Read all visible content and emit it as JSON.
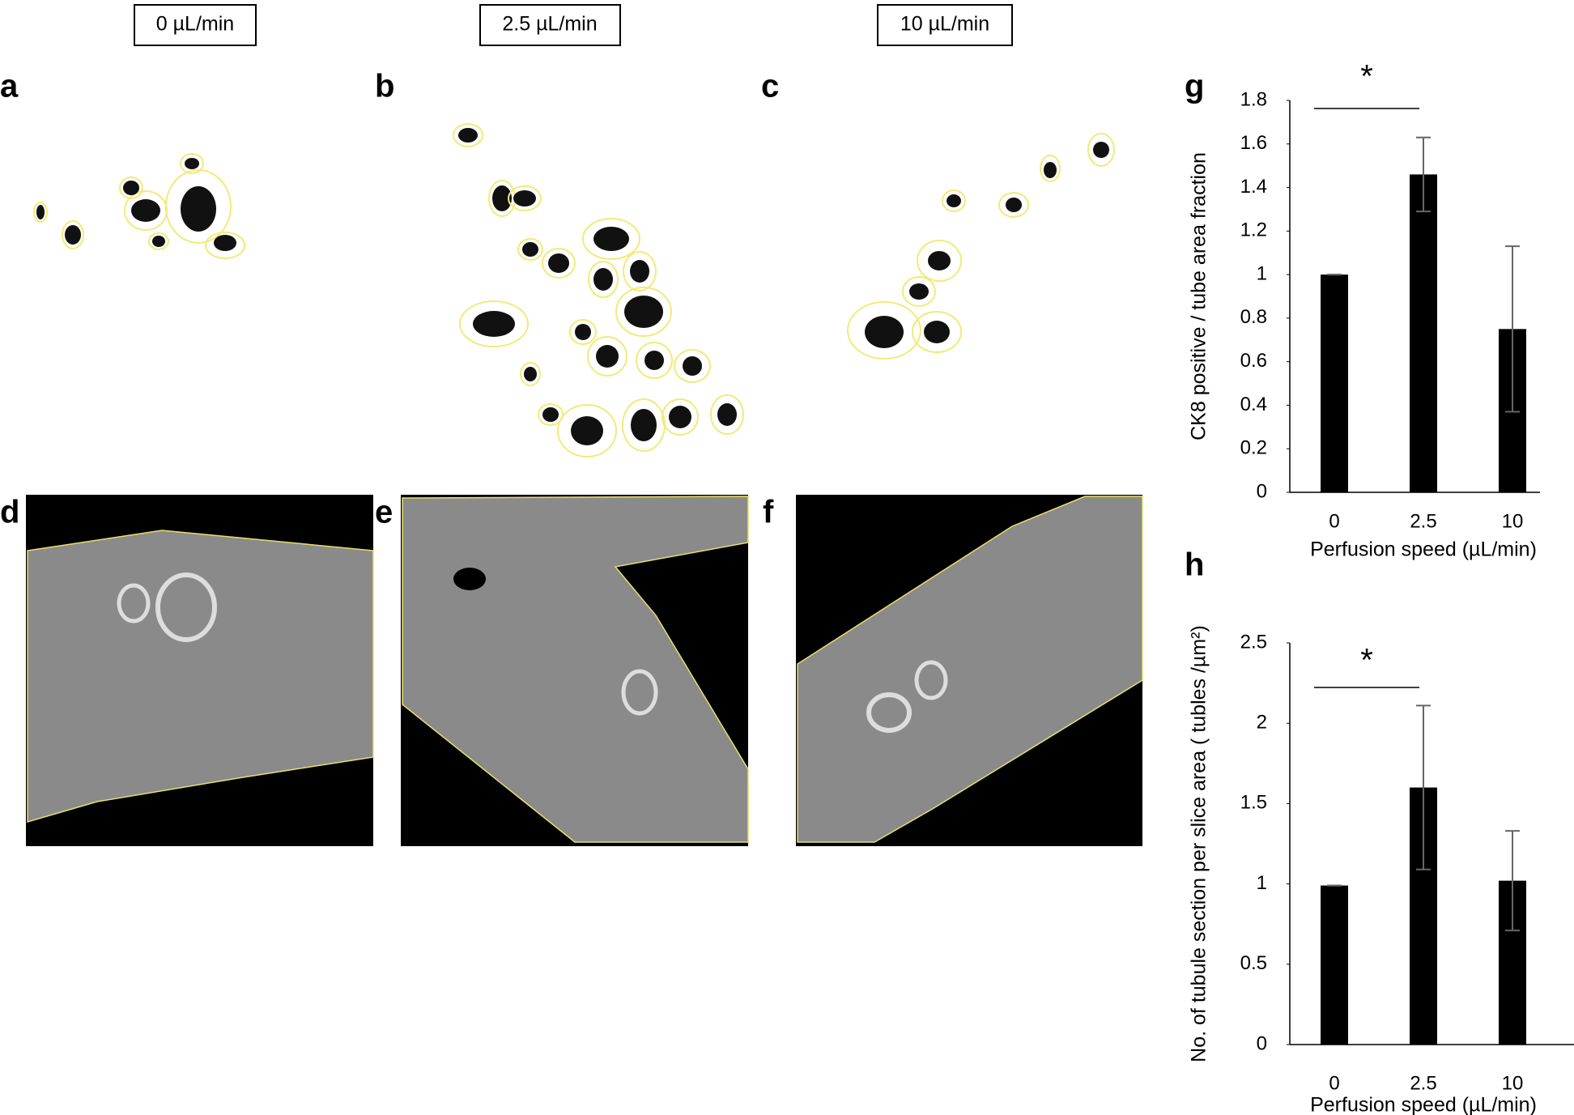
{
  "conditions": [
    "0 µL/min",
    "2.5 µL/min",
    "10 µL/min"
  ],
  "panel_labels": [
    "a",
    "b",
    "c",
    "d",
    "e",
    "f"
  ],
  "chart_data": [
    {
      "type": "bar",
      "panel_label": "g",
      "annotation": "*",
      "categories": [
        "0",
        "2.5",
        "10"
      ],
      "values": [
        1.0,
        1.46,
        0.75
      ],
      "errors": [
        0,
        0.17,
        0.38
      ],
      "color": "#000000",
      "ylim": [
        0,
        1.8
      ],
      "yticks": [
        0,
        0.2,
        0.4,
        0.6,
        0.8,
        1,
        1.2,
        1.4,
        1.6,
        1.8
      ],
      "xlabel": "Perfusion speed (µL/min)",
      "ylabel": "CK8 positive / tube area fraction"
    },
    {
      "type": "bar",
      "panel_label": "h",
      "annotation": "*",
      "categories": [
        "0",
        "2.5",
        "10"
      ],
      "values": [
        0.99,
        1.6,
        1.02
      ],
      "errors": [
        0,
        0.51,
        0.31
      ],
      "color": "#000000",
      "ylim": [
        0,
        2.5
      ],
      "yticks": [
        0,
        0.5,
        1,
        1.5,
        2,
        2.5
      ],
      "xlabel": "Perfusion speed (µL/min)",
      "ylabel": "No. of tubule section per slice area ( tubles /µm²)"
    }
  ]
}
